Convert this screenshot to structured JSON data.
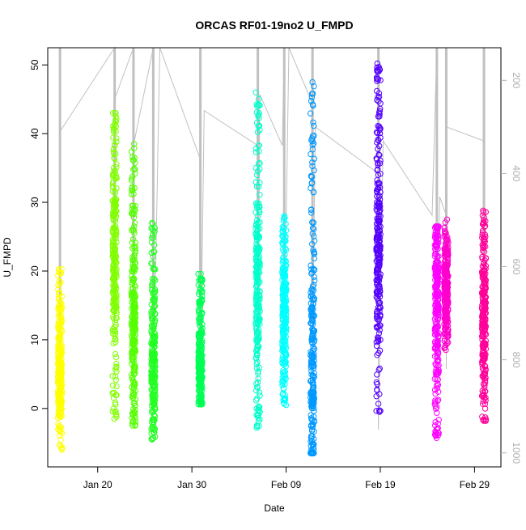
{
  "chart_data": {
    "type": "scatter",
    "title": "ORCAS RF01-19no2 U_FMPD",
    "xlabel": "Date",
    "ylabel": "U_FMPD",
    "x_ticks": [
      "Jan 20",
      "Jan 30",
      "Feb 09",
      "Feb 19",
      "Feb 29"
    ],
    "x_tick_values": [
      20,
      30,
      40,
      50,
      60
    ],
    "xlim": [
      14.7,
      62.8
    ],
    "y_ticks": [
      0,
      10,
      20,
      30,
      40,
      50
    ],
    "ylim": [
      -8.5,
      52.5
    ],
    "y2_ticks": [
      200,
      400,
      600,
      800,
      1000
    ],
    "y2lim_top_to_bottom": [
      130,
      1030
    ],
    "grid": false,
    "legend": "none",
    "x_unit": "day of 2016 (Jan 1 = 1)",
    "flights": [
      {
        "day": 16.0,
        "color": "#FFFF00",
        "y_min": -6.0,
        "y_max": 20.3,
        "center": 5,
        "spread": 6
      },
      {
        "day": 21.8,
        "color": "#80FF00",
        "y_min": -1.5,
        "y_max": 43.0,
        "center": 22,
        "spread": 11
      },
      {
        "day": 23.8,
        "color": "#55FF00",
        "y_min": -2.5,
        "y_max": 38.5,
        "center": 12,
        "spread": 10
      },
      {
        "day": 25.9,
        "color": "#22FF22",
        "y_min": -4.5,
        "y_max": 27.0,
        "center": 6,
        "spread": 7
      },
      {
        "day": 30.9,
        "color": "#00FF55",
        "y_min": 0.6,
        "y_max": 19.6,
        "center": 6,
        "spread": 5
      },
      {
        "day": 37.0,
        "color": "#00FFCC",
        "y_min": -2.8,
        "y_max": 46.0,
        "center": 18,
        "spread": 12
      },
      {
        "day": 39.8,
        "color": "#00FFFF",
        "y_min": 0.5,
        "y_max": 28.0,
        "center": 14,
        "spread": 7
      },
      {
        "day": 42.8,
        "color": "#0099FF",
        "y_min": -6.5,
        "y_max": 47.5,
        "center": 5,
        "spread": 14
      },
      {
        "day": 49.8,
        "color": "#5500FF",
        "y_min": -0.5,
        "y_max": 50.2,
        "center": 23,
        "spread": 12
      },
      {
        "day": 56.0,
        "color": "#FF00FF",
        "y_min": -4.3,
        "y_max": 26.5,
        "center": 16,
        "spread": 10
      },
      {
        "day": 57.0,
        "color": "#FF00CC",
        "y_min": 8.5,
        "y_max": 27.5,
        "center": 17,
        "spread": 6
      },
      {
        "day": 61.0,
        "color": "#FF0099",
        "y_min": -1.8,
        "y_max": 28.8,
        "center": 12,
        "spread": 9
      }
    ],
    "pressure_trace_color": "#C0C0C0",
    "pressure_trace": [
      [
        16.0,
        130
      ],
      [
        16.0,
        600
      ],
      [
        16.0,
        310
      ],
      [
        21.8,
        130
      ],
      [
        21.8,
        720
      ],
      [
        21.8,
        240
      ],
      [
        23.8,
        130
      ],
      [
        23.8,
        780
      ],
      [
        23.8,
        340
      ],
      [
        25.9,
        130
      ],
      [
        25.9,
        880
      ],
      [
        26.6,
        130
      ],
      [
        30.9,
        370
      ],
      [
        30.9,
        130
      ],
      [
        30.9,
        860
      ],
      [
        31.3,
        265
      ],
      [
        37.0,
        340
      ],
      [
        37.0,
        130
      ],
      [
        37.0,
        870
      ],
      [
        37.2,
        230
      ],
      [
        39.6,
        340
      ],
      [
        39.8,
        130
      ],
      [
        39.8,
        780
      ],
      [
        40.3,
        130
      ],
      [
        42.8,
        250
      ],
      [
        42.8,
        130
      ],
      [
        42.8,
        790
      ],
      [
        43.1,
        300
      ],
      [
        49.8,
        400
      ],
      [
        49.8,
        130
      ],
      [
        49.8,
        950
      ],
      [
        50.3,
        330
      ],
      [
        55.5,
        490
      ],
      [
        56.0,
        130
      ],
      [
        56.0,
        820
      ],
      [
        56.3,
        450
      ],
      [
        57.0,
        490
      ],
      [
        57.0,
        130
      ],
      [
        57.0,
        820
      ],
      [
        57.0,
        300
      ],
      [
        61.0,
        330
      ],
      [
        61.0,
        130
      ],
      [
        61.0,
        820
      ]
    ]
  }
}
